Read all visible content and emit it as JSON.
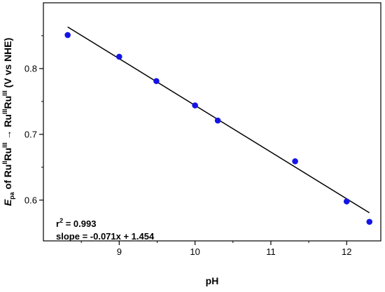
{
  "chart_data": {
    "type": "scatter",
    "x": [
      8.32,
      9.0,
      9.49,
      10.0,
      10.3,
      11.32,
      12.0,
      12.3
    ],
    "y": [
      0.851,
      0.818,
      0.781,
      0.744,
      0.721,
      0.659,
      0.598,
      0.567
    ],
    "fit": {
      "slope": -0.071,
      "intercept": 1.454,
      "x_range": [
        8.32,
        12.3
      ]
    },
    "xlim": [
      8.0,
      12.45
    ],
    "ylim": [
      0.538,
      0.9
    ],
    "xticks": [
      9,
      10,
      11,
      12
    ],
    "yticks": [
      0.6,
      0.7,
      0.8
    ],
    "xtick_labels": [
      "9",
      "10",
      "11",
      "12"
    ],
    "ytick_labels": [
      "0.6",
      "0.7",
      "0.8"
    ],
    "xlabel": "pH",
    "ylabel": {
      "e": "E",
      "pa": "pa",
      "of": " of Ru",
      "ii": "II",
      "ru1": "Ru",
      "iii1": "III",
      "arrow": " → Ru",
      "iii2": "III",
      "ru2": "Ru",
      "iii3": "III",
      "unit": " (V vs NHE)"
    },
    "annotations": {
      "r2_prefix": "r",
      "r2_sup": "2",
      "r2_value": " = 0.993",
      "slope_text": "slope = -0.071x + 1.454"
    },
    "marker_color": "#1414e6",
    "line_color": "#000000",
    "grid": false,
    "legend": "none"
  }
}
